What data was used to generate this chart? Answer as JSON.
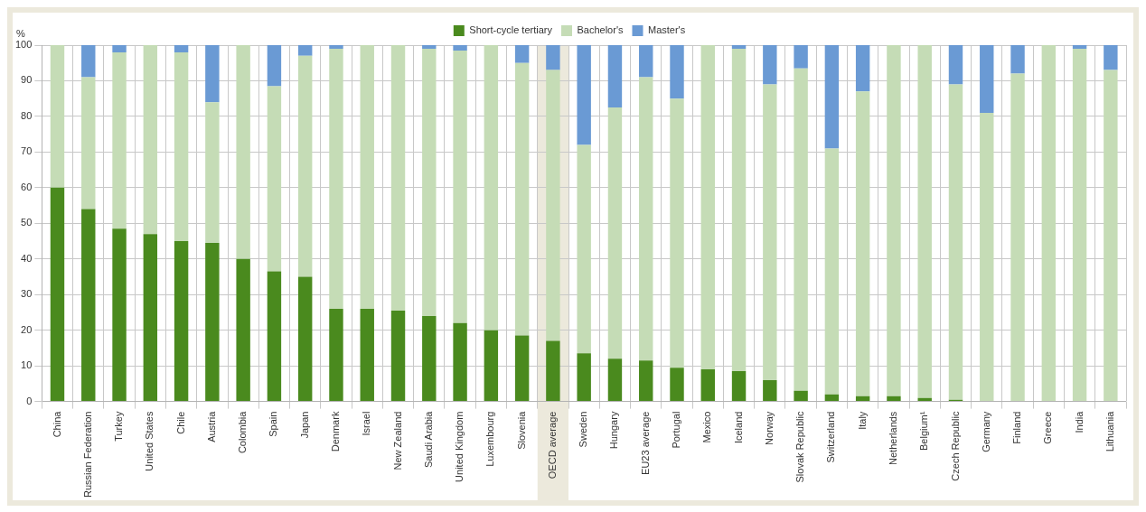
{
  "chart_data": {
    "type": "bar",
    "stacked": true,
    "ylabel": "%",
    "ylim": [
      0,
      100
    ],
    "yticks": [
      0,
      10,
      20,
      30,
      40,
      50,
      60,
      70,
      80,
      90,
      100
    ],
    "grid": true,
    "legend": "top",
    "categories": [
      "China",
      "Russian Federation",
      "Turkey",
      "United States",
      "Chile",
      "Austria",
      "Colombia",
      "Spain",
      "Japan",
      "Denmark",
      "Israel",
      "New Zealand",
      "Saudi Arabia",
      "United Kingdom",
      "Luxembourg",
      "Slovenia",
      "OECD average",
      "Sweden",
      "Hungary",
      "EU23 average",
      "Portugal",
      "Mexico",
      "Iceland",
      "Norway",
      "Slovak Republic",
      "Switzerland",
      "Italy",
      "Netherlands",
      "Belgium¹",
      "Czech Republic",
      "Germany",
      "Finland",
      "Greece",
      "India",
      "Lithuania"
    ],
    "bands": [
      {
        "axis": "x",
        "from": "OECD average",
        "to": "OECD average",
        "color": "#ece9dc"
      }
    ],
    "series": [
      {
        "name": "Short-cycle tertiary",
        "color": "#4a8a1e",
        "values": [
          60,
          54,
          48.5,
          47,
          45,
          44.5,
          40,
          36.5,
          35,
          26,
          26,
          25.5,
          24,
          22,
          20,
          18.5,
          17,
          13.5,
          12,
          11.5,
          9.5,
          9,
          8.5,
          6,
          3,
          2,
          1.5,
          1.5,
          1,
          0.5,
          0,
          0,
          0,
          0,
          0
        ]
      },
      {
        "name": "Bachelor's",
        "color": "#c5dcb6",
        "values": [
          40,
          37,
          49.5,
          53,
          53,
          39.5,
          60,
          52,
          62,
          73,
          74,
          74.5,
          75,
          76.5,
          80,
          76.5,
          76,
          58.5,
          70.5,
          79.5,
          75.5,
          91,
          90.5,
          83,
          90.5,
          69,
          85.5,
          98.5,
          99,
          88.5,
          81,
          92,
          100,
          99,
          93
        ]
      },
      {
        "name": "Master's",
        "color": "#6a9ad4",
        "values": [
          0,
          9,
          2,
          0,
          2,
          16,
          0,
          11.5,
          3,
          1,
          0,
          0,
          1,
          1.5,
          0,
          5,
          7,
          28,
          17.5,
          9,
          15,
          0,
          1,
          11,
          6.5,
          29,
          13,
          0,
          0,
          11,
          19,
          8,
          0,
          1,
          7
        ]
      }
    ]
  }
}
